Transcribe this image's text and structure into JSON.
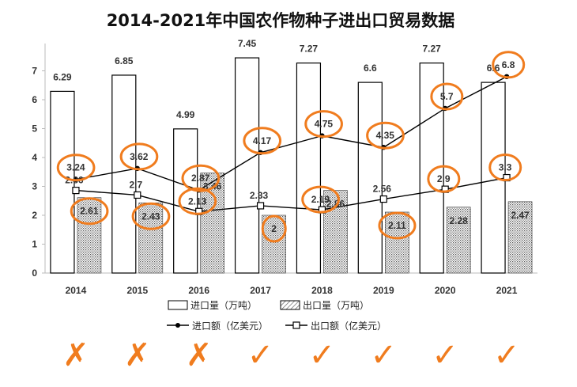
{
  "chart_data": {
    "type": "bar",
    "title": "2014-2021年中国农作物种子进出口贸易数据",
    "categories": [
      "2014",
      "2015",
      "2016",
      "2017",
      "2018",
      "2019",
      "2020",
      "2021"
    ],
    "ylim": [
      0,
      7.5
    ],
    "yticks": [
      0,
      1,
      2,
      3,
      4,
      5,
      6,
      7
    ],
    "grid": false,
    "legend_position": "bottom",
    "series": [
      {
        "name": "进口量（万吨）",
        "kind": "bar",
        "fill": "white",
        "values": [
          6.29,
          6.85,
          4.99,
          7.45,
          7.27,
          6.6,
          7.27,
          6.6
        ]
      },
      {
        "name": "出口量（万吨）",
        "kind": "bar",
        "fill": "dotted",
        "values": [
          2.61,
          2.43,
          3.46,
          2,
          2.86,
          2.11,
          2.28,
          2.47
        ]
      },
      {
        "name": "进口额（亿美元）",
        "kind": "line",
        "marker": "filled-circle",
        "values": [
          3.24,
          3.62,
          2.87,
          4.17,
          4.75,
          4.35,
          5.7,
          6.8
        ]
      },
      {
        "name": "出口额（亿美元）",
        "kind": "line",
        "marker": "open-square",
        "values": [
          2.86,
          2.7,
          2.13,
          2.33,
          2.19,
          2.56,
          2.9,
          3.3
        ]
      }
    ],
    "annotations": {
      "marks_below_categories": [
        "✗",
        "✗",
        "✗",
        "✓",
        "✓",
        "✓",
        "✓",
        "✓"
      ],
      "circled_values": [
        "3.24",
        "2.61",
        "3.62",
        "2.43",
        "2.87",
        "2.13",
        "4.17",
        "2",
        "4.75",
        "2.19",
        "4.35",
        "2.11",
        "5.7",
        "2.9",
        "6.8",
        "3.3"
      ],
      "ink_color": "#f07c1e"
    }
  }
}
